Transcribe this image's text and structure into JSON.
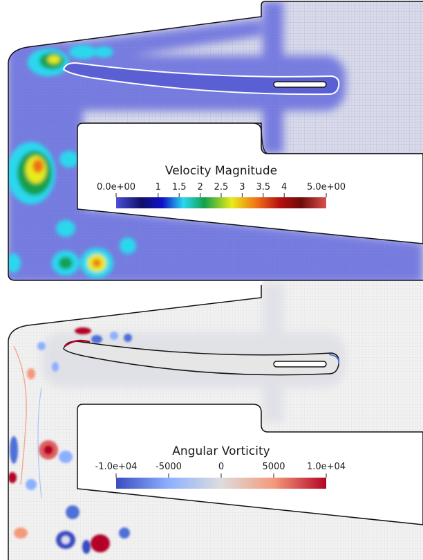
{
  "panels": [
    {
      "colorbar": {
        "title": "Velocity Magnitude",
        "tick_labels": [
          "0.0e+00",
          "1",
          "1.5",
          "2",
          "2.5",
          "3",
          "3.5",
          "4",
          "5.0e+00"
        ],
        "tick_values": [
          0,
          1,
          1.5,
          2,
          2.5,
          3,
          3.5,
          4,
          5
        ],
        "range": [
          0,
          5
        ],
        "colors": [
          "#4a4fd6",
          "#10106a",
          "#1010c8",
          "#2ad8ee",
          "#14a04a",
          "#e8ec1a",
          "#f07018",
          "#b41010",
          "#700a0a",
          "#d85050"
        ]
      }
    },
    {
      "colorbar": {
        "title": "Angular Vorticity",
        "tick_labels": [
          "-1.0e+04",
          "-5000",
          "0",
          "5000",
          "1.0e+04"
        ],
        "tick_values": [
          -10000,
          -5000,
          0,
          5000,
          10000
        ],
        "range": [
          -10000,
          10000
        ],
        "colors": [
          "#3b4cc0",
          "#8db0fe",
          "#dddddd",
          "#f49a7b",
          "#b40426"
        ]
      }
    }
  ]
}
